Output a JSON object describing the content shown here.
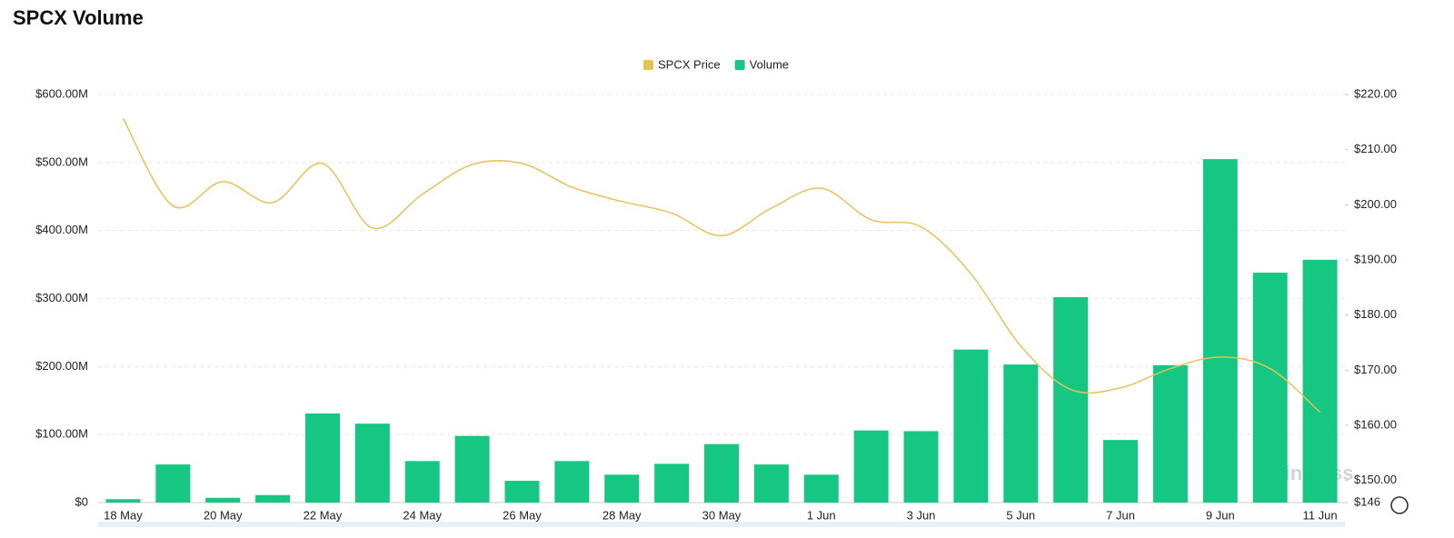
{
  "chart_data": {
    "type": "bar-line",
    "title": "SPCX Volume",
    "watermark": "coinglass",
    "categories": [
      "18 May",
      null,
      "20 May",
      null,
      "22 May",
      null,
      "24 May",
      null,
      "26 May",
      null,
      "28 May",
      null,
      "30 May",
      null,
      "1 Jun",
      null,
      "3 Jun",
      null,
      "5 Jun",
      null,
      "7 Jun",
      null,
      "9 Jun",
      null,
      "11 Jun"
    ],
    "series": [
      {
        "name": "SPCX Price",
        "color": "#e6c15a",
        "type": "line",
        "axis": "y2",
        "values": [
          215.7,
          199.8,
          204.2,
          200.4,
          207.5,
          195.8,
          201.9,
          207.3,
          207.5,
          203.2,
          200.6,
          198.5,
          194.4,
          199.4,
          203,
          197.3,
          196,
          187.5,
          174.4,
          166.5,
          166.8,
          170.3,
          172.4,
          170.3,
          162.4
        ]
      },
      {
        "name": "Volume",
        "color": "#16c784",
        "type": "bar",
        "values": [
          5,
          56,
          7,
          11,
          131,
          116,
          61,
          98,
          32,
          61,
          41,
          57,
          86,
          56,
          41,
          106,
          105,
          225,
          203,
          302,
          92,
          202,
          505,
          338,
          357
        ]
      }
    ],
    "ylim": [
      0,
      600
    ],
    "yticks": [
      {
        "value": 0,
        "label": "$0"
      },
      {
        "value": 100,
        "label": "$100.00M"
      },
      {
        "value": 200,
        "label": "$200.00M"
      },
      {
        "value": 300,
        "label": "$300.00M"
      },
      {
        "value": 400,
        "label": "$400.00M"
      },
      {
        "value": 500,
        "label": "$500.00M"
      },
      {
        "value": 600,
        "label": "$600.00M"
      }
    ],
    "y2lim": [
      146,
      220
    ],
    "y2ticks": [
      {
        "value": 146,
        "label": "$146"
      },
      {
        "value": 150,
        "label": "$150.00"
      },
      {
        "value": 160,
        "label": "$160.00"
      },
      {
        "value": 170,
        "label": "$170.00"
      },
      {
        "value": 180,
        "label": "$180.00"
      },
      {
        "value": 190,
        "label": "$190.00"
      },
      {
        "value": 200,
        "label": "$200.00"
      },
      {
        "value": 210,
        "label": "$210.00"
      },
      {
        "value": 220,
        "label": "$220.00"
      }
    ],
    "grid": true
  }
}
